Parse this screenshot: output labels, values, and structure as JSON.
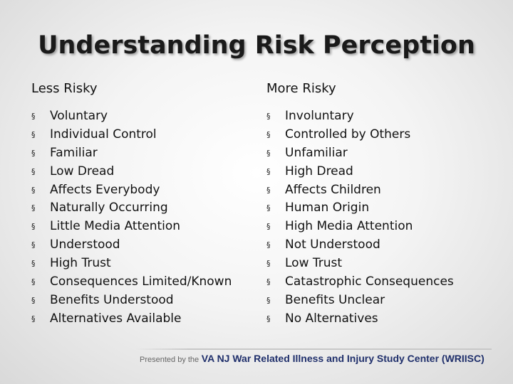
{
  "slide": {
    "title": "Understanding Risk Perception",
    "left": {
      "heading": "Less Risky",
      "items": [
        "Voluntary",
        "Individual Control",
        "Familiar",
        "Low Dread",
        "Affects Everybody",
        "Naturally Occurring",
        "Little Media Attention",
        "Understood",
        "High Trust",
        "Consequences Limited/Known",
        "Benefits Understood",
        "Alternatives Available"
      ]
    },
    "right": {
      "heading": "More Risky",
      "items": [
        "Involuntary",
        "Controlled by Others",
        "Unfamiliar",
        "High Dread",
        "Affects Children",
        "Human Origin",
        "High Media Attention",
        "Not Understood",
        "Low Trust",
        "Catastrophic Consequences",
        "Benefits Unclear",
        "No Alternatives"
      ]
    },
    "bullet_glyph": "§",
    "footer": {
      "lead": "Presented by the",
      "center": "VA NJ War Related Illness and Injury Study Center (WRIISC)"
    }
  }
}
